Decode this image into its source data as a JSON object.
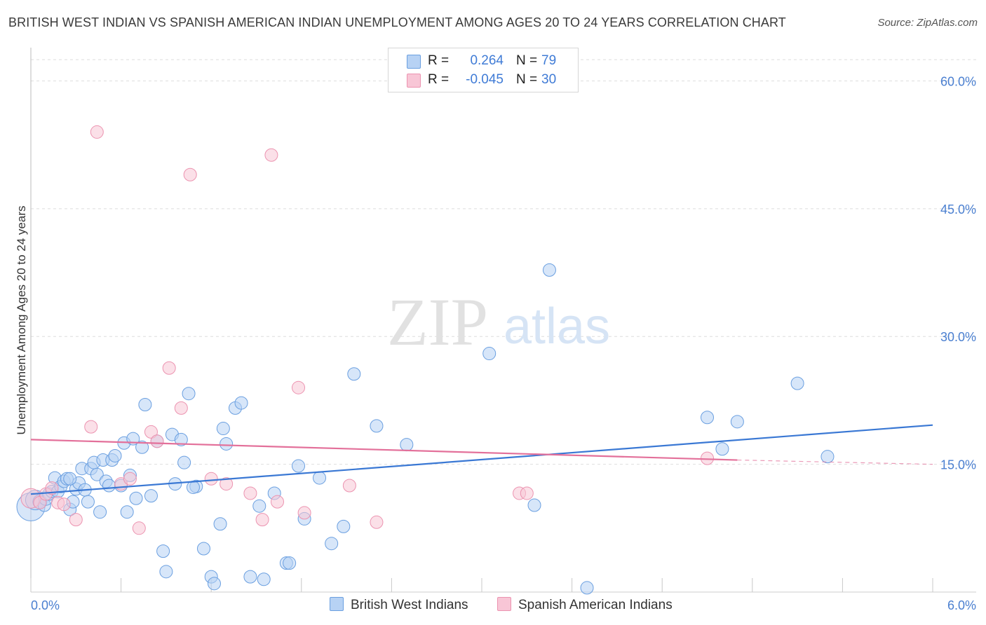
{
  "title": "BRITISH WEST INDIAN VS SPANISH AMERICAN INDIAN UNEMPLOYMENT AMONG AGES 20 TO 24 YEARS CORRELATION CHART",
  "source": "Source: ZipAtlas.com",
  "watermark": {
    "zip": "ZIP",
    "atlas": "atlas"
  },
  "legend_top": [
    {
      "r_label": "R =",
      "r_value": "0.264",
      "n_label": "N =",
      "n_value": "79"
    },
    {
      "r_label": "R =",
      "r_value": "-0.045",
      "n_label": "N =",
      "n_value": "30"
    }
  ],
  "legend_bottom": [
    "British West Indians",
    "Spanish American Indians"
  ],
  "colors": {
    "blue_fill": "#b7d2f4",
    "blue_stroke": "#6a9fe0",
    "blue_line": "#3a78d4",
    "pink_fill": "#f8c6d6",
    "pink_stroke": "#ec93b0",
    "pink_line": "#e3709a",
    "grid": "#dedede",
    "tick_text": "#4a7fd0"
  },
  "chart_data": {
    "type": "scatter",
    "title": "BRITISH WEST INDIAN VS SPANISH AMERICAN INDIAN UNEMPLOYMENT AMONG AGES 20 TO 24 YEARS CORRELATION CHART",
    "xlabel": "",
    "ylabel": "Unemployment Among Ages 20 to 24 years",
    "xlim": [
      0,
      6
    ],
    "ylim": [
      0,
      63
    ],
    "x_ticks": [
      "0.0%",
      "6.0%"
    ],
    "y_ticks": [
      {
        "value": 15,
        "label": "15.0%"
      },
      {
        "value": 30,
        "label": "30.0%"
      },
      {
        "value": 45,
        "label": "45.0%"
      },
      {
        "value": 60,
        "label": "60.0%"
      }
    ],
    "grid": true,
    "series": [
      {
        "name": "British West Indians",
        "color": "blue",
        "R": 0.264,
        "N": 79,
        "trend": {
          "x0": 0.0,
          "y0": 11.5,
          "x1": 6.0,
          "y1": 19.6
        },
        "points": [
          [
            0.0,
            10.0,
            20
          ],
          [
            0.03,
            10.8,
            14
          ],
          [
            0.06,
            10.6,
            10
          ],
          [
            0.09,
            10.2,
            9
          ],
          [
            0.1,
            11.0,
            10
          ],
          [
            0.12,
            11.5,
            9
          ],
          [
            0.14,
            11.8,
            9
          ],
          [
            0.16,
            13.4,
            9
          ],
          [
            0.18,
            11.8,
            9
          ],
          [
            0.2,
            12.4,
            9
          ],
          [
            0.22,
            13.0,
            9
          ],
          [
            0.24,
            13.3,
            9
          ],
          [
            0.26,
            9.7,
            9
          ],
          [
            0.28,
            10.6,
            9
          ],
          [
            0.3,
            12.1,
            9
          ],
          [
            0.32,
            12.8,
            9
          ],
          [
            0.34,
            14.5,
            9
          ],
          [
            0.36,
            12.0,
            9
          ],
          [
            0.38,
            10.6,
            9
          ],
          [
            0.4,
            14.5,
            9
          ],
          [
            0.42,
            15.2,
            9
          ],
          [
            0.44,
            13.8,
            9
          ],
          [
            0.46,
            9.4,
            9
          ],
          [
            0.48,
            15.5,
            9
          ],
          [
            0.5,
            13.0,
            9
          ],
          [
            0.52,
            12.5,
            9
          ],
          [
            0.54,
            15.5,
            9
          ],
          [
            0.56,
            16.0,
            9
          ],
          [
            0.6,
            12.5,
            9
          ],
          [
            0.62,
            17.5,
            9
          ],
          [
            0.64,
            9.4,
            9
          ],
          [
            0.66,
            13.7,
            9
          ],
          [
            0.68,
            18.0,
            9
          ],
          [
            0.7,
            11.0,
            9
          ],
          [
            0.74,
            17.0,
            9
          ],
          [
            0.76,
            22.0,
            9
          ],
          [
            0.8,
            11.3,
            9
          ],
          [
            0.84,
            17.7,
            9
          ],
          [
            0.88,
            4.8,
            9
          ],
          [
            0.9,
            2.4,
            9
          ],
          [
            0.94,
            18.5,
            9
          ],
          [
            0.96,
            12.7,
            9
          ],
          [
            1.0,
            17.9,
            9
          ],
          [
            1.02,
            15.2,
            9
          ],
          [
            1.05,
            23.3,
            9
          ],
          [
            1.1,
            12.4,
            9
          ],
          [
            1.15,
            5.1,
            9
          ],
          [
            1.2,
            1.8,
            9
          ],
          [
            1.22,
            1.0,
            9
          ],
          [
            1.26,
            8.0,
            9
          ],
          [
            1.28,
            19.2,
            9
          ],
          [
            1.3,
            17.4,
            9
          ],
          [
            1.36,
            21.6,
            9
          ],
          [
            1.4,
            22.2,
            9
          ],
          [
            1.46,
            1.8,
            9
          ],
          [
            1.52,
            10.1,
            9
          ],
          [
            1.55,
            1.5,
            9
          ],
          [
            1.62,
            11.6,
            9
          ],
          [
            1.7,
            3.4,
            9
          ],
          [
            1.72,
            3.4,
            9
          ],
          [
            1.78,
            14.8,
            9
          ],
          [
            1.82,
            8.6,
            9
          ],
          [
            1.92,
            13.4,
            9
          ],
          [
            2.0,
            5.7,
            9
          ],
          [
            2.08,
            7.7,
            9
          ],
          [
            2.15,
            25.6,
            9
          ],
          [
            2.3,
            19.5,
            9
          ],
          [
            2.5,
            17.3,
            9
          ],
          [
            3.05,
            28.0,
            9
          ],
          [
            3.35,
            10.2,
            9
          ],
          [
            3.45,
            37.8,
            9
          ],
          [
            3.7,
            0.5,
            9
          ],
          [
            4.5,
            20.5,
            9
          ],
          [
            4.6,
            16.8,
            9
          ],
          [
            4.7,
            20.0,
            9
          ],
          [
            5.1,
            24.5,
            9
          ],
          [
            5.3,
            15.9,
            9
          ],
          [
            1.08,
            12.3,
            9
          ],
          [
            0.26,
            13.3,
            9
          ]
        ]
      },
      {
        "name": "Spanish American Indians",
        "color": "pink",
        "R": -0.045,
        "N": 30,
        "trend": {
          "x0": 0.0,
          "y0": 17.9,
          "x1": 4.7,
          "y1": 15.5,
          "dash_x1": 6.0,
          "dash_y1": 15.0
        },
        "points": [
          [
            0.0,
            11.0,
            14
          ],
          [
            0.06,
            10.5,
            9
          ],
          [
            0.1,
            11.5,
            9
          ],
          [
            0.14,
            12.2,
            9
          ],
          [
            0.18,
            10.5,
            9
          ],
          [
            0.22,
            10.3,
            9
          ],
          [
            0.3,
            8.5,
            9
          ],
          [
            0.4,
            19.4,
            9
          ],
          [
            0.44,
            54.0,
            9
          ],
          [
            0.6,
            12.7,
            9
          ],
          [
            0.66,
            13.3,
            9
          ],
          [
            0.72,
            7.5,
            9
          ],
          [
            0.8,
            18.8,
            9
          ],
          [
            0.84,
            17.7,
            9
          ],
          [
            0.92,
            26.3,
            9
          ],
          [
            1.0,
            21.6,
            9
          ],
          [
            1.06,
            49.0,
            9
          ],
          [
            1.2,
            13.3,
            9
          ],
          [
            1.3,
            12.7,
            9
          ],
          [
            1.46,
            11.6,
            9
          ],
          [
            1.54,
            8.5,
            9
          ],
          [
            1.6,
            51.3,
            9
          ],
          [
            1.64,
            10.6,
            9
          ],
          [
            1.78,
            24.0,
            9
          ],
          [
            1.82,
            9.3,
            9
          ],
          [
            2.12,
            12.5,
            9
          ],
          [
            2.3,
            8.2,
            9
          ],
          [
            3.25,
            11.6,
            9
          ],
          [
            3.3,
            11.6,
            9
          ],
          [
            4.5,
            15.7,
            9
          ]
        ]
      }
    ]
  }
}
